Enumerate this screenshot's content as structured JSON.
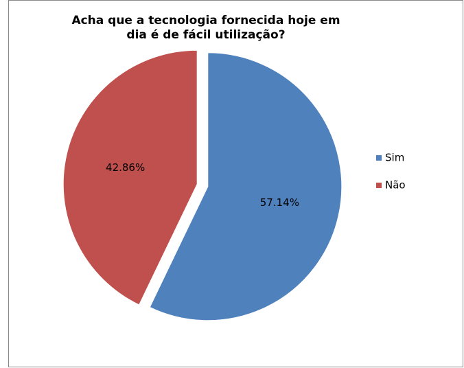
{
  "chart_data": {
    "type": "pie",
    "title": "Acha que a tecnologia fornecida hoje em dia é de fácil utilização?",
    "categories": [
      "Sim",
      "Não"
    ],
    "values": [
      57.14,
      42.86
    ],
    "value_labels": [
      "57.14%",
      "42.86%"
    ],
    "colors": [
      "#4f81bd",
      "#c0504d"
    ],
    "legend": "right"
  }
}
